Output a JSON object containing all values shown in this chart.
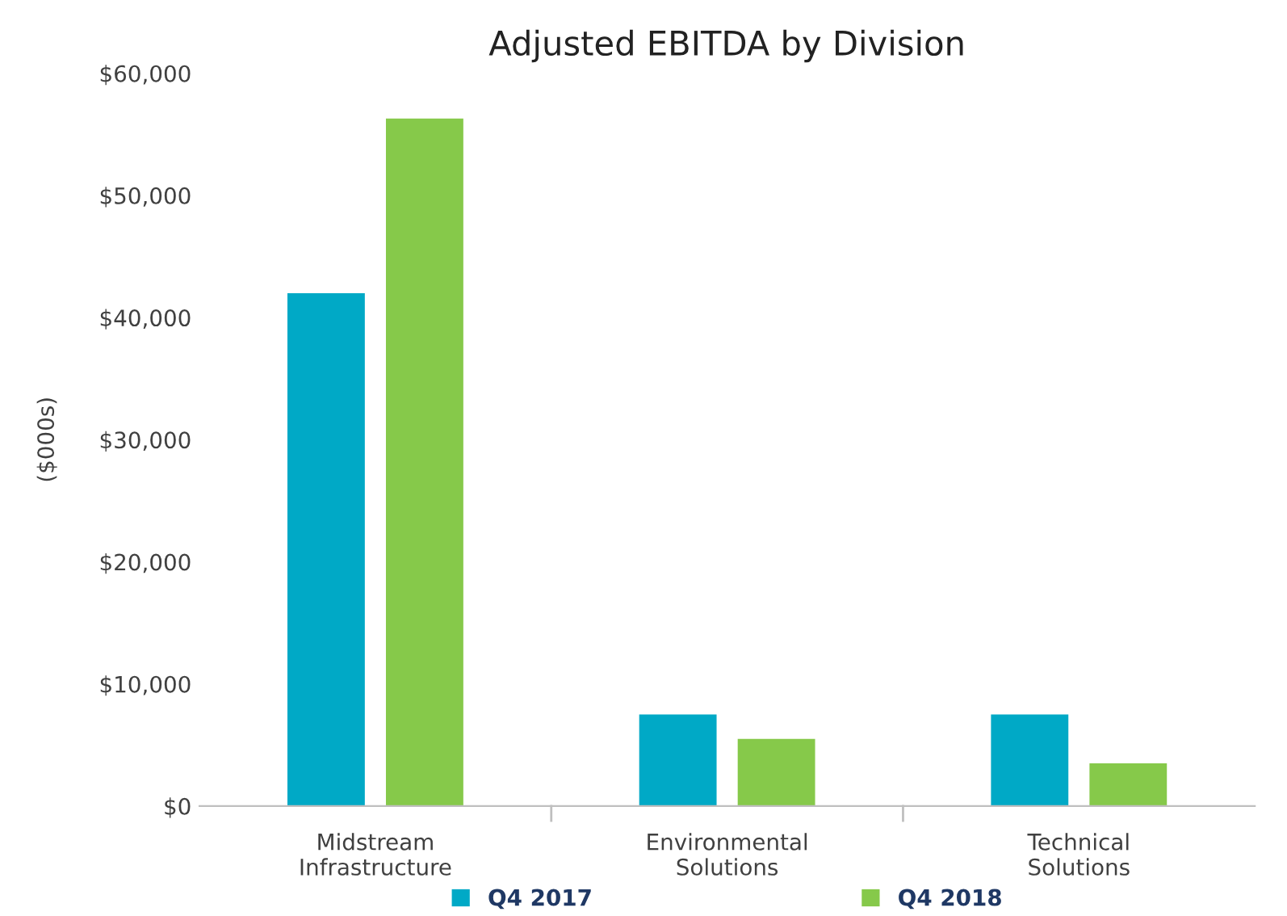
{
  "chart_data": {
    "type": "bar",
    "title": "Adjusted EBITDA by Division",
    "ylabel": "($000s)",
    "categories": [
      "Midstream\nInfrastructure",
      "Environmental\nSolutions",
      "Technical\nSolutions"
    ],
    "series": [
      {
        "name": "Q4 2017",
        "color": "#00a9c6",
        "values": [
          42000,
          7500,
          7500
        ]
      },
      {
        "name": "Q4 2018",
        "color": "#86c94a",
        "values": [
          56300,
          5500,
          3500
        ]
      }
    ],
    "ylim": [
      0,
      60000
    ],
    "yticks": [
      {
        "value": 0,
        "label": "$0"
      },
      {
        "value": 10000,
        "label": "$10,000"
      },
      {
        "value": 20000,
        "label": "$20,000"
      },
      {
        "value": 30000,
        "label": "$30,000"
      },
      {
        "value": 40000,
        "label": "$40,000"
      },
      {
        "value": 50000,
        "label": "$50,000"
      },
      {
        "value": 60000,
        "label": "$60,000"
      }
    ],
    "grid": false,
    "legend": "bottom"
  }
}
